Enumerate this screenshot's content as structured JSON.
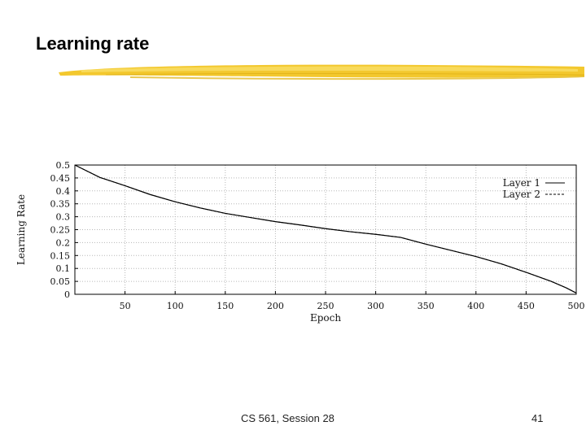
{
  "slide": {
    "title": "Learning rate",
    "accent_color": "#f2c31c",
    "footer": {
      "course_session": "CS 561,  Session 28",
      "page_number": "41"
    }
  },
  "chart_data": {
    "type": "line",
    "title": "",
    "xlabel": "Epoch",
    "ylabel": "Learning Rate",
    "xlim": [
      0,
      500
    ],
    "ylim": [
      0,
      0.5
    ],
    "x_ticks": [
      50,
      100,
      150,
      200,
      250,
      300,
      350,
      400,
      450,
      500
    ],
    "x_tick_labels": [
      "50",
      "100",
      "150",
      "200",
      "250",
      "300",
      "350",
      "400",
      "450",
      "500"
    ],
    "y_ticks": [
      0,
      0.05,
      0.1,
      0.15,
      0.2,
      0.25,
      0.3,
      0.35,
      0.4,
      0.45,
      0.5
    ],
    "y_tick_labels": [
      "0",
      "0.05",
      "0.1",
      "0.15",
      "0.2",
      "0.25",
      "0.3",
      "0.35",
      "0.4",
      "0.45",
      "0.5"
    ],
    "legend_position": "top-right",
    "series": [
      {
        "name": "Layer 1",
        "style": "solid",
        "color": "#000000",
        "x": [
          0,
          25,
          50,
          75,
          100,
          125,
          150,
          175,
          200,
          225,
          250,
          275,
          300,
          325,
          350,
          375,
          400,
          425,
          450,
          475,
          490,
          500
        ],
        "y": [
          0.5,
          0.452,
          0.42,
          0.386,
          0.358,
          0.334,
          0.313,
          0.297,
          0.281,
          0.268,
          0.254,
          0.242,
          0.232,
          0.22,
          0.194,
          0.17,
          0.146,
          0.118,
          0.085,
          0.05,
          0.025,
          0.005
        ]
      },
      {
        "name": "Layer 2",
        "style": "dashed",
        "color": "#000000",
        "x": [
          0,
          25,
          50,
          75,
          100,
          125,
          150,
          175,
          200,
          225,
          250,
          275,
          300,
          325,
          350,
          375,
          400,
          425,
          450,
          475,
          490,
          500
        ],
        "y": [
          0.5,
          0.452,
          0.42,
          0.386,
          0.358,
          0.334,
          0.313,
          0.297,
          0.281,
          0.268,
          0.254,
          0.242,
          0.232,
          0.22,
          0.194,
          0.17,
          0.146,
          0.118,
          0.085,
          0.05,
          0.025,
          0.005
        ]
      }
    ]
  }
}
